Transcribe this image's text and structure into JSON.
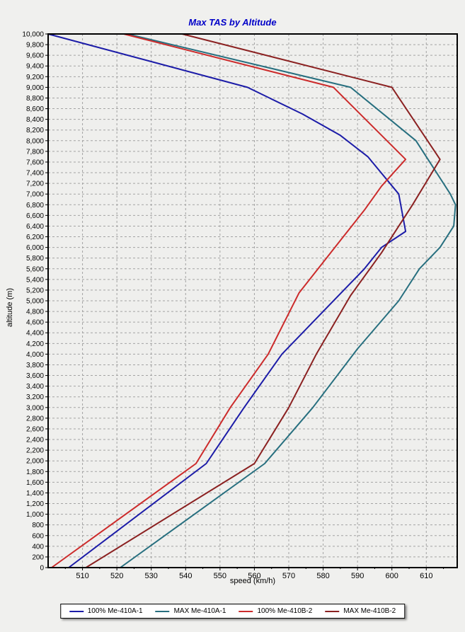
{
  "colors": {
    "title": "#0000C8",
    "background": "#F0F0EE",
    "plot_background": "#EFEFED",
    "grid": "#A3A3A3",
    "axis": "#000000",
    "legend_background": "#FFFFFF"
  },
  "chart_data": {
    "type": "line",
    "title": "Max TAS by Altitude",
    "xlabel": "speed (km/h)",
    "ylabel": "altitude (m)",
    "xlim": [
      500,
      619
    ],
    "ylim": [
      0,
      10000
    ],
    "x_tick_start": 510,
    "x_tick_end": 610,
    "x_tick_step": 10,
    "x_minor_tick_step": 5,
    "y_tick_step": 200,
    "grid": "dashed",
    "legend_position": "bottom",
    "orientation": "x = true airspeed (km/h), y = altitude (m)",
    "series": [
      {
        "name": "100% Me-410A-1",
        "color": "#1C1CA8",
        "points": [
          [
            506,
            0
          ],
          [
            546,
            1950
          ],
          [
            557,
            3000
          ],
          [
            568,
            4000
          ],
          [
            580,
            4800
          ],
          [
            592,
            5600
          ],
          [
            597,
            6000
          ],
          [
            604,
            6300
          ],
          [
            602,
            7000
          ],
          [
            593,
            7700
          ],
          [
            585,
            8100
          ],
          [
            574,
            8500
          ],
          [
            558,
            9000
          ],
          [
            500,
            10000
          ]
        ]
      },
      {
        "name": "MAX Me-410A-1",
        "color": "#276F7F",
        "points": [
          [
            521,
            0
          ],
          [
            563,
            1950
          ],
          [
            577,
            3000
          ],
          [
            590,
            4100
          ],
          [
            602,
            5000
          ],
          [
            608,
            5600
          ],
          [
            614,
            6000
          ],
          [
            618,
            6400
          ],
          [
            618.5,
            6800
          ],
          [
            617,
            7000
          ],
          [
            607,
            8000
          ],
          [
            588,
            9000
          ],
          [
            523,
            10000
          ]
        ]
      },
      {
        "name": "100% Me-410B-2",
        "color": "#CC2B2B",
        "points": [
          [
            501,
            0
          ],
          [
            543,
            1950
          ],
          [
            553,
            3000
          ],
          [
            564,
            4000
          ],
          [
            573,
            5150
          ],
          [
            585,
            6130
          ],
          [
            592,
            6700
          ],
          [
            597,
            7150
          ],
          [
            604,
            7650
          ],
          [
            583,
            9000
          ],
          [
            522,
            10000
          ]
        ]
      },
      {
        "name": "MAX Me-410B-2",
        "color": "#8B2121",
        "points": [
          [
            511,
            0
          ],
          [
            560,
            1950
          ],
          [
            570,
            3000
          ],
          [
            578,
            4000
          ],
          [
            588,
            5100
          ],
          [
            597,
            5900
          ],
          [
            606,
            6800
          ],
          [
            614,
            7650
          ],
          [
            600,
            9000
          ],
          [
            539,
            10000
          ]
        ]
      }
    ]
  }
}
